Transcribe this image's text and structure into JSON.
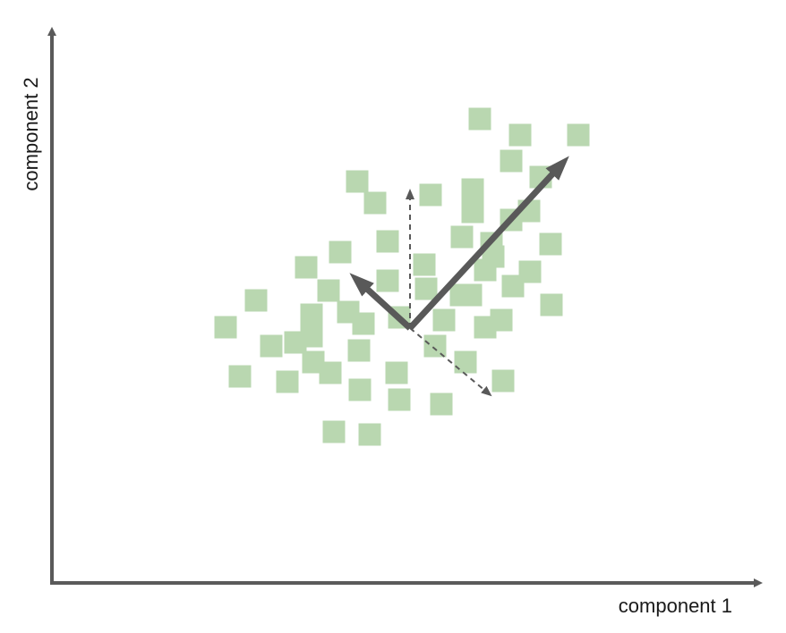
{
  "figure": {
    "x_axis_label": "component 1",
    "y_axis_label": "component 2"
  },
  "colors": {
    "axis": "#5a5a5a",
    "points": "#b9d7b0",
    "arrow": "#595959"
  },
  "chart_data": {
    "type": "scatter",
    "title": "",
    "xlabel": "component 1",
    "ylabel": "component 2",
    "grid": false,
    "legend": "none",
    "series": [
      {
        "points": [
          [
            536,
            133
          ],
          [
            581,
            151
          ],
          [
            646,
            151
          ],
          [
            571,
            180
          ],
          [
            604,
            198
          ],
          [
            399,
            203
          ],
          [
            481,
            218
          ],
          [
            528,
            212
          ],
          [
            419,
            227
          ],
          [
            528,
            237
          ],
          [
            591,
            236
          ],
          [
            571,
            246
          ],
          [
            516,
            265
          ],
          [
            549,
            272
          ],
          [
            433,
            270
          ],
          [
            615,
            273
          ],
          [
            380,
            282
          ],
          [
            551,
            287
          ],
          [
            342,
            299
          ],
          [
            474,
            296
          ],
          [
            542,
            302
          ],
          [
            592,
            304
          ],
          [
            367,
            325
          ],
          [
            433,
            314
          ],
          [
            573,
            320
          ],
          [
            476,
            323
          ],
          [
            515,
            330
          ],
          [
            526,
            330
          ],
          [
            286,
            336
          ],
          [
            616,
            341
          ],
          [
            348,
            352
          ],
          [
            389,
            349
          ],
          [
            446,
            355
          ],
          [
            496,
            358
          ],
          [
            252,
            366
          ],
          [
            406,
            362
          ],
          [
            542,
            366
          ],
          [
            560,
            358
          ],
          [
            303,
            387
          ],
          [
            330,
            383
          ],
          [
            348,
            376
          ],
          [
            486,
            387
          ],
          [
            401,
            392
          ],
          [
            350,
            405
          ],
          [
            268,
            421
          ],
          [
            321,
            427
          ],
          [
            520,
            405
          ],
          [
            369,
            417
          ],
          [
            443,
            417
          ],
          [
            562,
            426
          ],
          [
            402,
            436
          ],
          [
            446,
            447
          ],
          [
            493,
            452
          ],
          [
            373,
            483
          ],
          [
            413,
            486
          ]
        ]
      }
    ]
  },
  "vectors": [
    {
      "name": "principal-axis-1",
      "style": "solid"
    },
    {
      "name": "principal-axis-2",
      "style": "solid"
    },
    {
      "name": "original-axis-1",
      "style": "dashed"
    },
    {
      "name": "original-axis-2",
      "style": "dashed"
    }
  ]
}
